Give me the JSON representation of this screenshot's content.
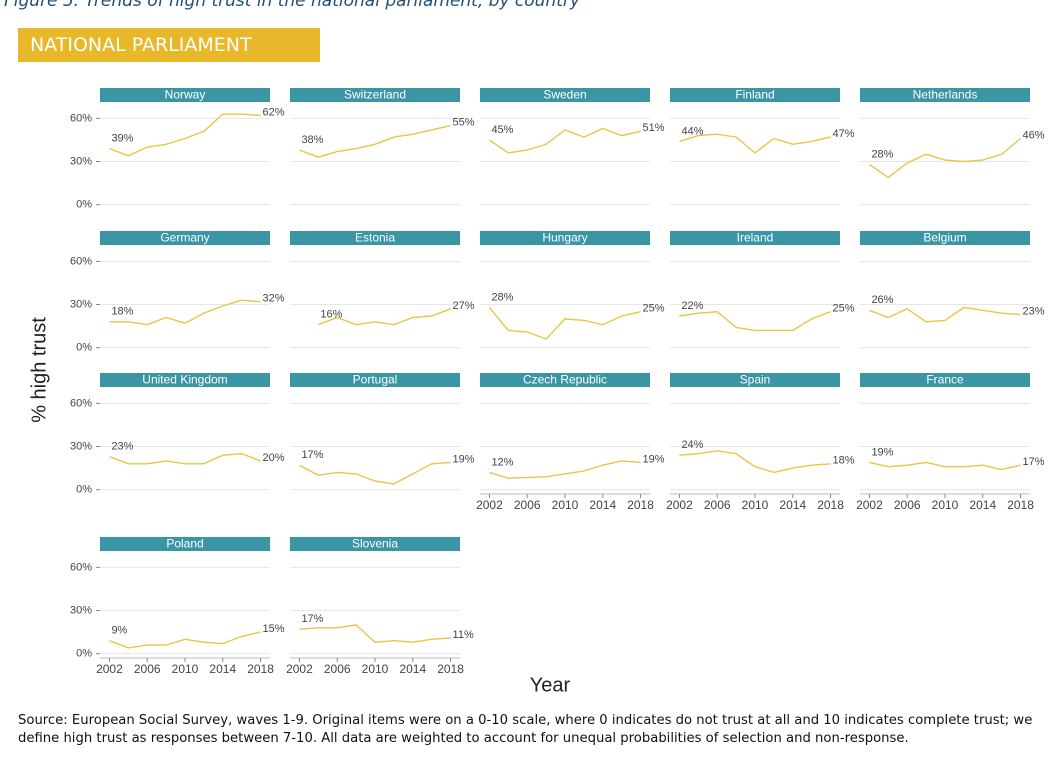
{
  "caption": "Figure 5: Trends of high trust in the national parliament, by country",
  "banner": "NATIONAL PARLIAMENT",
  "ylabel": "% high trust",
  "xlabel": "Year",
  "source": "Source: European Social Survey, waves 1-9. Original items were on a 0-10 scale, where 0 indicates do not trust at all and 10 indicates complete trust; we define high trust as responses between 7-10. All data are weighted to account for unequal probabilities of selection and non-response.",
  "axes": {
    "xlim": [
      2001,
      2019
    ],
    "xticks": [
      2002,
      2006,
      2010,
      2014,
      2018
    ],
    "ylim": [
      -3,
      70
    ],
    "yticks": [
      {
        "value": 0,
        "label": "0%"
      },
      {
        "value": 30,
        "label": "30%"
      },
      {
        "value": 60,
        "label": "60%"
      }
    ],
    "grid": true
  },
  "chart_data": [
    {
      "type": "line",
      "title": "Norway",
      "color": "#e8c547",
      "x": [
        2002,
        2004,
        2006,
        2008,
        2010,
        2012,
        2014,
        2016,
        2018
      ],
      "values": [
        39,
        34,
        40,
        42,
        46,
        51,
        63,
        63,
        62
      ],
      "value_labels": [
        "39%",
        null,
        null,
        null,
        null,
        null,
        null,
        null,
        "62%"
      ]
    },
    {
      "type": "line",
      "title": "Switzerland",
      "color": "#e8c547",
      "x": [
        2002,
        2004,
        2006,
        2008,
        2010,
        2012,
        2014,
        2016,
        2018
      ],
      "values": [
        38,
        33,
        37,
        39,
        42,
        47,
        49,
        52,
        55
      ],
      "value_labels": [
        "38%",
        null,
        null,
        null,
        null,
        null,
        null,
        null,
        "55%"
      ]
    },
    {
      "type": "line",
      "title": "Sweden",
      "color": "#e8c547",
      "x": [
        2002,
        2004,
        2006,
        2008,
        2010,
        2012,
        2014,
        2016,
        2018
      ],
      "values": [
        45,
        36,
        38,
        42,
        52,
        47,
        53,
        48,
        51
      ],
      "value_labels": [
        "45%",
        null,
        null,
        null,
        null,
        null,
        null,
        null,
        "51%"
      ]
    },
    {
      "type": "line",
      "title": "Finland",
      "color": "#e8c547",
      "x": [
        2002,
        2004,
        2006,
        2008,
        2010,
        2012,
        2014,
        2016,
        2018
      ],
      "values": [
        44,
        48,
        49,
        47,
        36,
        46,
        42,
        44,
        47
      ],
      "value_labels": [
        "44%",
        null,
        null,
        null,
        null,
        null,
        null,
        null,
        "47%"
      ]
    },
    {
      "type": "line",
      "title": "Netherlands",
      "color": "#e8c547",
      "x": [
        2002,
        2004,
        2006,
        2008,
        2010,
        2012,
        2014,
        2016,
        2018
      ],
      "values": [
        28,
        19,
        29,
        35,
        31,
        30,
        31,
        35,
        46
      ],
      "value_labels": [
        "28%",
        null,
        null,
        null,
        null,
        null,
        null,
        null,
        "46%"
      ]
    },
    {
      "type": "line",
      "title": "Germany",
      "color": "#e8c547",
      "x": [
        2002,
        2004,
        2006,
        2008,
        2010,
        2012,
        2014,
        2016,
        2018
      ],
      "values": [
        18,
        18,
        16,
        21,
        17,
        24,
        29,
        33,
        32
      ],
      "value_labels": [
        "18%",
        null,
        null,
        null,
        null,
        null,
        null,
        null,
        "32%"
      ]
    },
    {
      "type": "line",
      "title": "Estonia",
      "color": "#e8c547",
      "x": [
        2004,
        2006,
        2008,
        2010,
        2012,
        2014,
        2016,
        2018
      ],
      "values": [
        16,
        21,
        16,
        18,
        16,
        21,
        22,
        27
      ],
      "value_labels": [
        "16%",
        null,
        null,
        null,
        null,
        null,
        null,
        "27%"
      ]
    },
    {
      "type": "line",
      "title": "Hungary",
      "color": "#e8c547",
      "x": [
        2002,
        2004,
        2006,
        2008,
        2010,
        2012,
        2014,
        2016,
        2018
      ],
      "values": [
        28,
        12,
        11,
        6,
        20,
        19,
        16,
        22,
        25
      ],
      "value_labels": [
        "28%",
        null,
        null,
        null,
        null,
        null,
        null,
        null,
        "25%"
      ]
    },
    {
      "type": "line",
      "title": "Ireland",
      "color": "#e8c547",
      "x": [
        2002,
        2004,
        2006,
        2008,
        2010,
        2012,
        2014,
        2016,
        2018
      ],
      "values": [
        22,
        24,
        25,
        14,
        12,
        12,
        12,
        20,
        25
      ],
      "value_labels": [
        "22%",
        null,
        null,
        null,
        null,
        null,
        null,
        null,
        "25%"
      ]
    },
    {
      "type": "line",
      "title": "Belgium",
      "color": "#e8c547",
      "x": [
        2002,
        2004,
        2006,
        2008,
        2010,
        2012,
        2014,
        2016,
        2018
      ],
      "values": [
        26,
        21,
        27,
        18,
        19,
        28,
        26,
        24,
        23
      ],
      "value_labels": [
        "26%",
        null,
        null,
        null,
        null,
        null,
        null,
        null,
        "23%"
      ]
    },
    {
      "type": "line",
      "title": "United Kingdom",
      "color": "#e8c547",
      "x": [
        2002,
        2004,
        2006,
        2008,
        2010,
        2012,
        2014,
        2016,
        2018
      ],
      "values": [
        23,
        18,
        18,
        20,
        18,
        18,
        24,
        25,
        20
      ],
      "value_labels": [
        "23%",
        null,
        null,
        null,
        null,
        null,
        null,
        null,
        "20%"
      ]
    },
    {
      "type": "line",
      "title": "Portugal",
      "color": "#e8c547",
      "x": [
        2002,
        2004,
        2006,
        2008,
        2010,
        2012,
        2014,
        2016,
        2018
      ],
      "values": [
        17,
        10,
        12,
        11,
        6,
        4,
        11,
        18,
        19
      ],
      "value_labels": [
        "17%",
        null,
        null,
        null,
        null,
        null,
        null,
        null,
        "19%"
      ]
    },
    {
      "type": "line",
      "title": "Czech Republic",
      "color": "#e8c547",
      "x": [
        2002,
        2004,
        2008,
        2010,
        2012,
        2014,
        2016,
        2018
      ],
      "values": [
        12,
        8,
        9,
        11,
        13,
        17,
        20,
        19
      ],
      "value_labels": [
        "12%",
        null,
        null,
        null,
        null,
        null,
        null,
        "19%"
      ]
    },
    {
      "type": "line",
      "title": "Spain",
      "color": "#e8c547",
      "x": [
        2002,
        2004,
        2006,
        2008,
        2010,
        2012,
        2014,
        2016,
        2018
      ],
      "values": [
        24,
        25,
        27,
        25,
        16,
        12,
        15,
        17,
        18
      ],
      "value_labels": [
        "24%",
        null,
        null,
        null,
        null,
        null,
        null,
        null,
        "18%"
      ]
    },
    {
      "type": "line",
      "title": "France",
      "color": "#e8c547",
      "x": [
        2002,
        2004,
        2006,
        2008,
        2010,
        2012,
        2014,
        2016,
        2018
      ],
      "values": [
        19,
        16,
        17,
        19,
        16,
        16,
        17,
        14,
        17
      ],
      "value_labels": [
        "19%",
        null,
        null,
        null,
        null,
        null,
        null,
        null,
        "17%"
      ]
    },
    {
      "type": "line",
      "title": "Poland",
      "color": "#e8c547",
      "x": [
        2002,
        2004,
        2006,
        2008,
        2010,
        2012,
        2014,
        2016,
        2018
      ],
      "values": [
        9,
        4,
        6,
        6,
        10,
        8,
        7,
        12,
        15
      ],
      "value_labels": [
        "9%",
        null,
        null,
        null,
        null,
        null,
        null,
        null,
        "15%"
      ]
    },
    {
      "type": "line",
      "title": "Slovenia",
      "color": "#e8c547",
      "x": [
        2002,
        2004,
        2006,
        2008,
        2010,
        2012,
        2014,
        2016,
        2018
      ],
      "values": [
        17,
        18,
        18,
        20,
        8,
        9,
        8,
        10,
        11
      ],
      "value_labels": [
        "17%",
        null,
        null,
        null,
        null,
        null,
        null,
        null,
        "11%"
      ]
    }
  ]
}
